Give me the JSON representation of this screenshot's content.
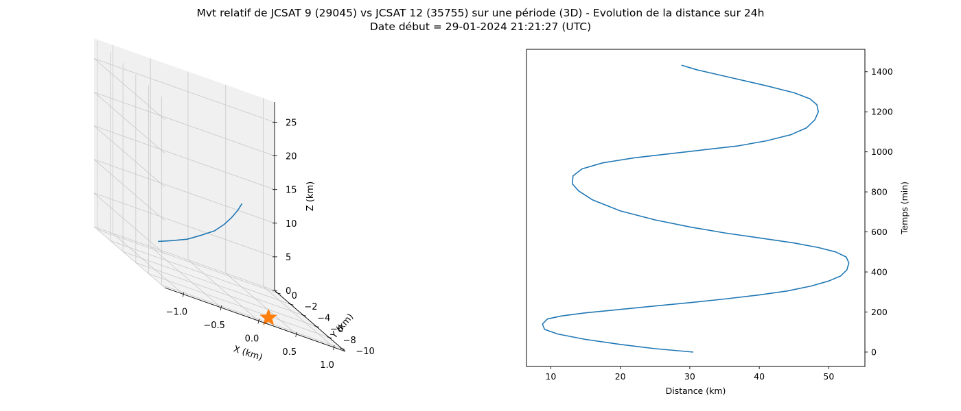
{
  "title_line1": "Mvt relatif de JCSAT 9 (29045) vs JCSAT 12 (35755) sur une période (3D) - Evolution de la distance sur 24h",
  "title_line2": "Date début = 29-01-2024 21:21:27 (UTC)",
  "colors": {
    "series": "#1f77b4",
    "marker": "#ff7f0e",
    "pane_side": "#f0f0f0",
    "pane_floor": "#f2f2f2",
    "grid": "#c8c8c8"
  },
  "chart_data": [
    {
      "type": "line3d",
      "xlabel": "X (km)",
      "ylabel": "Y (km)",
      "zlabel": "Z (km)",
      "x_ticks": [
        "−1.0",
        "−0.5",
        "0.0",
        "0.5",
        "1.0"
      ],
      "y_ticks": [
        "0",
        "−2",
        "−4",
        "−6",
        "−8",
        "−10"
      ],
      "z_ticks": [
        "0",
        "5",
        "10",
        "15",
        "20",
        "25"
      ],
      "xlim": [
        -1.25,
        1.15
      ],
      "ylim": [
        -10.5,
        0.5
      ],
      "zlim": [
        0,
        28
      ],
      "trajectory": {
        "x": [
          -1.16,
          -0.9,
          -0.6,
          -0.3,
          0.0,
          0.25,
          0.45,
          0.6,
          0.7
        ],
        "y": [
          -8.4,
          -7.5,
          -6.4,
          -5.0,
          -3.6,
          -2.2,
          -1.0,
          -0.2,
          0.3
        ],
        "z": [
          5.5,
          5.9,
          6.4,
          7.0,
          7.7,
          8.5,
          9.3,
          10.3,
          11.3
        ]
      },
      "marker": {
        "shape": "star",
        "x": 0.3,
        "y": -8.5,
        "z": 0.0
      }
    },
    {
      "type": "line",
      "xlabel": "Distance (km)",
      "ylabel": "Temps (min)",
      "x_ticks": [
        "10",
        "20",
        "30",
        "40",
        "50"
      ],
      "y_ticks": [
        "0",
        "200",
        "400",
        "600",
        "800",
        "1000",
        "1200",
        "1400"
      ],
      "xlim": [
        6.5,
        55.2
      ],
      "ylim": [
        -72,
        1512
      ],
      "series": [
        {
          "x": [
            30.5,
            25.0,
            20.0,
            15.0,
            11.0,
            9.1,
            8.8,
            9.5,
            11.5,
            15.0,
            20.0,
            25.0,
            30.0,
            35.0,
            40.0,
            44.0,
            47.5,
            50.0,
            51.7,
            52.6,
            52.9,
            52.5,
            51.0,
            48.5,
            45.0,
            40.0,
            35.0,
            30.0,
            25.0,
            20.0,
            16.0,
            14.0,
            13.1,
            13.2,
            14.5,
            17.5,
            22.0,
            27.0,
            32.0,
            37.0,
            41.0,
            44.5,
            46.8,
            48.0,
            48.5,
            48.3,
            47.3,
            45.0,
            41.0,
            36.0,
            31.0,
            28.8
          ],
          "y": [
            0,
            17,
            38,
            63,
            90,
            113,
            140,
            165,
            180,
            196,
            213,
            230,
            247,
            265,
            285,
            305,
            330,
            355,
            380,
            410,
            445,
            475,
            500,
            522,
            545,
            570,
            595,
            625,
            660,
            705,
            760,
            805,
            840,
            880,
            915,
            945,
            970,
            990,
            1010,
            1030,
            1055,
            1085,
            1120,
            1160,
            1200,
            1235,
            1265,
            1295,
            1330,
            1370,
            1410,
            1433
          ]
        }
      ]
    }
  ]
}
